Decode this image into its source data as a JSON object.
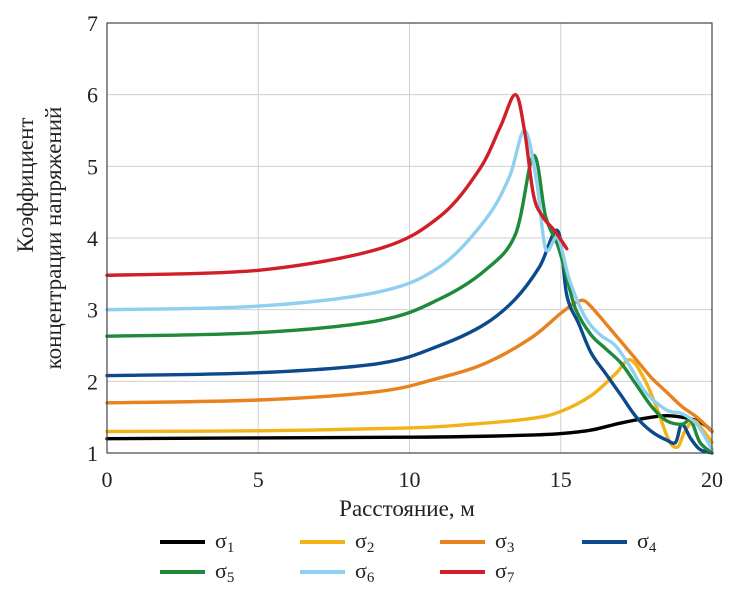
{
  "chart_data": {
    "type": "line",
    "xlabel": "Расстояние, м",
    "ylabel_lines": [
      "Коэффициент",
      "концентрации напряжений"
    ],
    "xlim": [
      0,
      20
    ],
    "ylim": [
      1,
      7
    ],
    "xticks": [
      0,
      5,
      10,
      15,
      20
    ],
    "yticks": [
      1,
      2,
      3,
      4,
      5,
      6,
      7
    ],
    "grid": true,
    "legend_position": "bottom",
    "series": [
      {
        "name": "σ",
        "sub": "1",
        "color": "#000000",
        "x": [
          0,
          5,
          10,
          12,
          14,
          15,
          16,
          17,
          18,
          18.5,
          19,
          19.5,
          19.8,
          20
        ],
        "y": [
          1.2,
          1.21,
          1.22,
          1.23,
          1.25,
          1.27,
          1.32,
          1.42,
          1.5,
          1.52,
          1.5,
          1.45,
          1.38,
          1.3
        ]
      },
      {
        "name": "σ",
        "sub": "2",
        "color": "#F2B318",
        "x": [
          0,
          5,
          10,
          12,
          14,
          15,
          16,
          16.8,
          17.3,
          17.8,
          18.2,
          18.5,
          18.7,
          18.9,
          19.1,
          19.4,
          19.7,
          20
        ],
        "y": [
          1.3,
          1.31,
          1.35,
          1.4,
          1.48,
          1.58,
          1.8,
          2.1,
          2.3,
          2.0,
          1.6,
          1.25,
          1.1,
          1.1,
          1.3,
          1.45,
          1.32,
          1.15
        ]
      },
      {
        "name": "σ",
        "sub": "3",
        "color": "#E8821E",
        "x": [
          0,
          5,
          9,
          11,
          12.5,
          14,
          15,
          15.5,
          15.8,
          16.2,
          16.5,
          17,
          17.5,
          18,
          18.5,
          19,
          19.5,
          20
        ],
        "y": [
          1.7,
          1.74,
          1.86,
          2.05,
          2.25,
          2.6,
          2.95,
          3.1,
          3.12,
          2.95,
          2.8,
          2.55,
          2.3,
          2.05,
          1.85,
          1.65,
          1.5,
          1.3
        ]
      },
      {
        "name": "σ",
        "sub": "4",
        "color": "#0D4A8C",
        "x": [
          0,
          5,
          9,
          11,
          12.5,
          13.5,
          14.3,
          14.9,
          15.2,
          15.6,
          16,
          16.5,
          17,
          17.5,
          18,
          18.5,
          18.8,
          19,
          19.3,
          19.6,
          20
        ],
        "y": [
          2.08,
          2.12,
          2.25,
          2.5,
          2.8,
          3.15,
          3.6,
          4.1,
          3.2,
          2.8,
          2.4,
          2.1,
          1.8,
          1.5,
          1.3,
          1.18,
          1.15,
          1.4,
          1.2,
          1.05,
          1.0
        ]
      },
      {
        "name": "σ",
        "sub": "5",
        "color": "#1E8A3A",
        "x": [
          0,
          5,
          9,
          11,
          12.5,
          13.5,
          14.1,
          14.5,
          14.9,
          15.2,
          15.5,
          16,
          16.5,
          17,
          17.5,
          18,
          18.5,
          19,
          19.3,
          19.6,
          20
        ],
        "y": [
          2.63,
          2.68,
          2.85,
          3.15,
          3.55,
          4.05,
          5.15,
          4.3,
          3.9,
          3.45,
          3.0,
          2.65,
          2.45,
          2.25,
          1.95,
          1.65,
          1.45,
          1.4,
          1.45,
          1.15,
          1.0
        ]
      },
      {
        "name": "σ",
        "sub": "6",
        "color": "#8FD0F0",
        "x": [
          0,
          5,
          9,
          11,
          12.5,
          13.3,
          13.8,
          14.2,
          14.5,
          14.9,
          15.3,
          15.8,
          16.3,
          16.8,
          17.3,
          17.8,
          18.5,
          19,
          19.5,
          20
        ],
        "y": [
          3.0,
          3.05,
          3.25,
          3.6,
          4.25,
          4.85,
          5.5,
          4.8,
          3.85,
          4.0,
          3.4,
          2.9,
          2.65,
          2.5,
          2.2,
          1.85,
          1.6,
          1.55,
          1.4,
          1.05
        ]
      },
      {
        "name": "σ",
        "sub": "7",
        "color": "#D11F2A",
        "x": [
          0,
          5,
          9,
          11,
          12.3,
          13,
          13.5,
          13.8,
          14.1,
          14.4,
          14.8,
          15.2
        ],
        "y": [
          3.48,
          3.55,
          3.85,
          4.3,
          4.95,
          5.55,
          6.0,
          5.5,
          4.6,
          4.3,
          4.1,
          3.85
        ]
      }
    ]
  }
}
